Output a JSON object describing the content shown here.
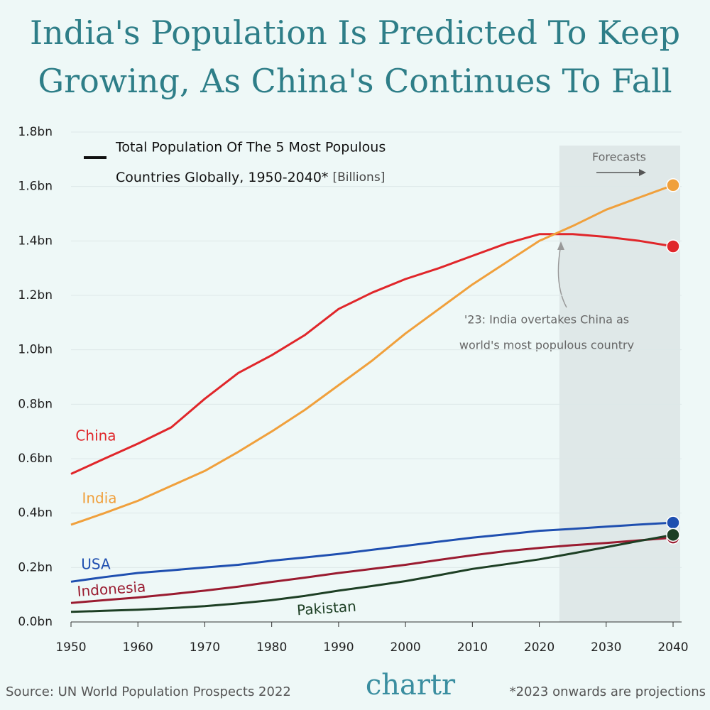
{
  "chart_data": {
    "type": "line",
    "title": [
      "India's Population Is Predicted To Keep",
      "Growing, As China's Continues To Fall"
    ],
    "legend_title": [
      "Total Population Of The 5 Most Populous",
      "Countries Globally, 1950-2040*"
    ],
    "unit_label": "[Billions]",
    "forecast_label": "Forecasts",
    "forecast_start": 2023,
    "annotation": [
      "'23: India overtakes China as",
      "world's most populous country"
    ],
    "source": "Source: UN World Population Prospects 2022",
    "brand": "chartr",
    "footnote": "*2023 onwards are projections",
    "x": [
      1950,
      1955,
      1960,
      1965,
      1970,
      1975,
      1980,
      1985,
      1990,
      1995,
      2000,
      2005,
      2010,
      2015,
      2020,
      2025,
      2030,
      2035,
      2040
    ],
    "series": [
      {
        "name": "China",
        "color": "#e0262a",
        "values": [
          0.544,
          0.6,
          0.655,
          0.715,
          0.82,
          0.915,
          0.98,
          1.055,
          1.15,
          1.21,
          1.26,
          1.3,
          1.345,
          1.39,
          1.425,
          1.425,
          1.415,
          1.4,
          1.38
        ]
      },
      {
        "name": "India",
        "color": "#f0a03c",
        "values": [
          0.357,
          0.4,
          0.445,
          0.5,
          0.555,
          0.625,
          0.7,
          0.78,
          0.87,
          0.96,
          1.06,
          1.15,
          1.24,
          1.32,
          1.4,
          1.455,
          1.515,
          1.56,
          1.605
        ]
      },
      {
        "name": "USA",
        "color": "#1f4fb0",
        "values": [
          0.148,
          0.165,
          0.18,
          0.19,
          0.2,
          0.21,
          0.225,
          0.237,
          0.25,
          0.265,
          0.28,
          0.295,
          0.31,
          0.322,
          0.335,
          0.342,
          0.35,
          0.358,
          0.365
        ]
      },
      {
        "name": "Indonesia",
        "color": "#9a1b30",
        "values": [
          0.07,
          0.08,
          0.09,
          0.102,
          0.115,
          0.13,
          0.147,
          0.163,
          0.18,
          0.195,
          0.21,
          0.228,
          0.245,
          0.26,
          0.272,
          0.282,
          0.29,
          0.3,
          0.31
        ]
      },
      {
        "name": "Pakistan",
        "color": "#1d3f24",
        "values": [
          0.037,
          0.041,
          0.045,
          0.051,
          0.058,
          0.068,
          0.08,
          0.096,
          0.115,
          0.132,
          0.15,
          0.172,
          0.195,
          0.212,
          0.23,
          0.252,
          0.275,
          0.298,
          0.32
        ]
      }
    ],
    "xlim": [
      1950,
      2040
    ],
    "xticks": [
      1950,
      1960,
      1970,
      1980,
      1990,
      2000,
      2010,
      2020,
      2030,
      2040
    ],
    "ylim": [
      0,
      1.8
    ],
    "yticks": [
      {
        "value": 0,
        "label": "0.0bn"
      },
      {
        "value": 0.2,
        "label": "0.2bn"
      },
      {
        "value": 0.4,
        "label": "0.4bn"
      },
      {
        "value": 0.6,
        "label": "0.6bn"
      },
      {
        "value": 0.8,
        "label": "0.8bn"
      },
      {
        "value": 1.0,
        "label": "1.0bn"
      },
      {
        "value": 1.2,
        "label": "1.2bn"
      },
      {
        "value": 1.4,
        "label": "1.4bn"
      },
      {
        "value": 1.6,
        "label": "1.6bn"
      },
      {
        "value": 1.8,
        "label": "1.8bn"
      }
    ],
    "grid": true
  }
}
